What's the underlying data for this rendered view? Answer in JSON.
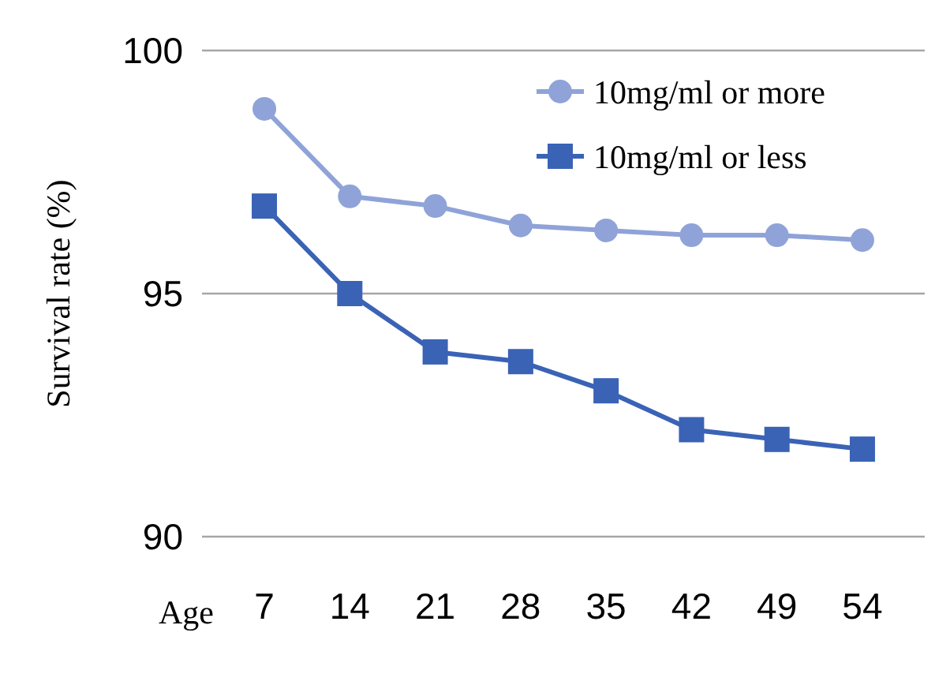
{
  "chart_data": {
    "type": "line",
    "xlabel": "Age",
    "ylabel": "Survival rate (%)",
    "categories": [
      "7",
      "14",
      "21",
      "28",
      "35",
      "42",
      "49",
      "54"
    ],
    "series": [
      {
        "name": "10mg/ml or more",
        "color": "#8fa3d9",
        "marker": "circle",
        "values": [
          98.8,
          97.0,
          96.8,
          96.4,
          96.3,
          96.2,
          96.2,
          96.1
        ]
      },
      {
        "name": "10mg/ml or less",
        "color": "#3a63b6",
        "marker": "square",
        "values": [
          96.8,
          95.0,
          93.8,
          93.6,
          93.0,
          92.2,
          92.0,
          91.8
        ]
      }
    ],
    "ylim": [
      90,
      100
    ],
    "yticks": [
      90,
      95,
      100
    ],
    "grid": "y",
    "legend": "top right"
  }
}
